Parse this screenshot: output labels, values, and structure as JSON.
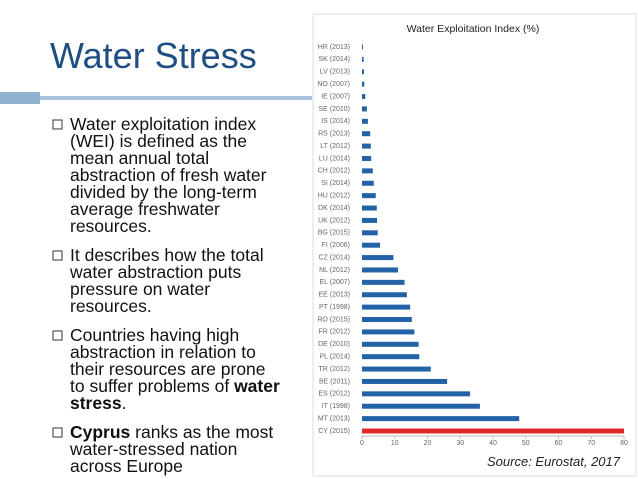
{
  "slide": {
    "title": "Water Stress",
    "bullets": [
      {
        "lines": [
          "Water exploitation index",
          "(WEI) is defined as the",
          "mean annual total",
          "abstraction of fresh water",
          "divided by the long-term",
          "average freshwater",
          "resources."
        ]
      },
      {
        "lines": [
          "It describes how the total",
          "water abstraction puts",
          "pressure on water",
          "resources."
        ]
      },
      {
        "lines": [
          "Countries having high",
          "abstraction in relation to",
          "their resources are prone",
          [
            {
              "text": "to suffer problems of ",
              "bold": false
            },
            {
              "text": "water",
              "bold": true
            }
          ],
          [
            {
              "text": "stress",
              "bold": true
            },
            {
              "text": ".",
              "bold": false
            }
          ]
        ]
      },
      {
        "lines": [
          [
            {
              "text": "Cyprus",
              "bold": true
            },
            {
              "text": " ranks as the most",
              "bold": false
            }
          ],
          "water-stressed nation",
          "across Europe"
        ]
      }
    ],
    "source": "Source: Eurostat, 2017"
  },
  "chart_data": {
    "type": "hbar",
    "title": "Water Exploitation Index (%)",
    "categories": [
      "HR (2013)",
      "SK (2014)",
      "LV (2013)",
      "NO (2007)",
      "IE (2007)",
      "SE (2010)",
      "IS (2014)",
      "RS (2013)",
      "LT (2012)",
      "LU (2014)",
      "CH (2012)",
      "SI (2014)",
      "HU (2012)",
      "DK (2014)",
      "UK (2012)",
      "BG (2015)",
      "FI (2006)",
      "CZ (2014)",
      "NL (2012)",
      "EL (2007)",
      "EE (2013)",
      "PT (1998)",
      "RO (2015)",
      "FR (2012)",
      "DE (2010)",
      "PL (2014)",
      "TR (2012)",
      "BE (2011)",
      "ES (2012)",
      "IT (1998)",
      "MT (2013)",
      "CY (2015)"
    ],
    "values": [
      0.3,
      0.5,
      0.6,
      0.7,
      1.0,
      1.5,
      1.8,
      2.5,
      2.7,
      2.8,
      3.3,
      3.6,
      4.2,
      4.5,
      4.6,
      4.8,
      5.5,
      9.6,
      11,
      13,
      13.7,
      14.7,
      15.2,
      16,
      17.3,
      17.5,
      21,
      26,
      33,
      36,
      48,
      80
    ],
    "colors": [
      "#2462a6",
      "#2462a6",
      "#2462a6",
      "#2462a6",
      "#2462a6",
      "#2462a6",
      "#2462a6",
      "#2462a6",
      "#2462a6",
      "#2462a6",
      "#2462a6",
      "#2462a6",
      "#2462a6",
      "#2462a6",
      "#2462a6",
      "#2462a6",
      "#2462a6",
      "#2462a6",
      "#2462a6",
      "#2462a6",
      "#2462a6",
      "#2462a6",
      "#2462a6",
      "#2462a6",
      "#2462a6",
      "#2462a6",
      "#2462a6",
      "#2462a6",
      "#2462a6",
      "#2462a6",
      "#2462a6",
      "#e0282a"
    ],
    "xlim": [
      0,
      80
    ],
    "xticks": [
      0,
      10,
      20,
      30,
      40,
      50,
      60,
      70,
      80
    ]
  }
}
